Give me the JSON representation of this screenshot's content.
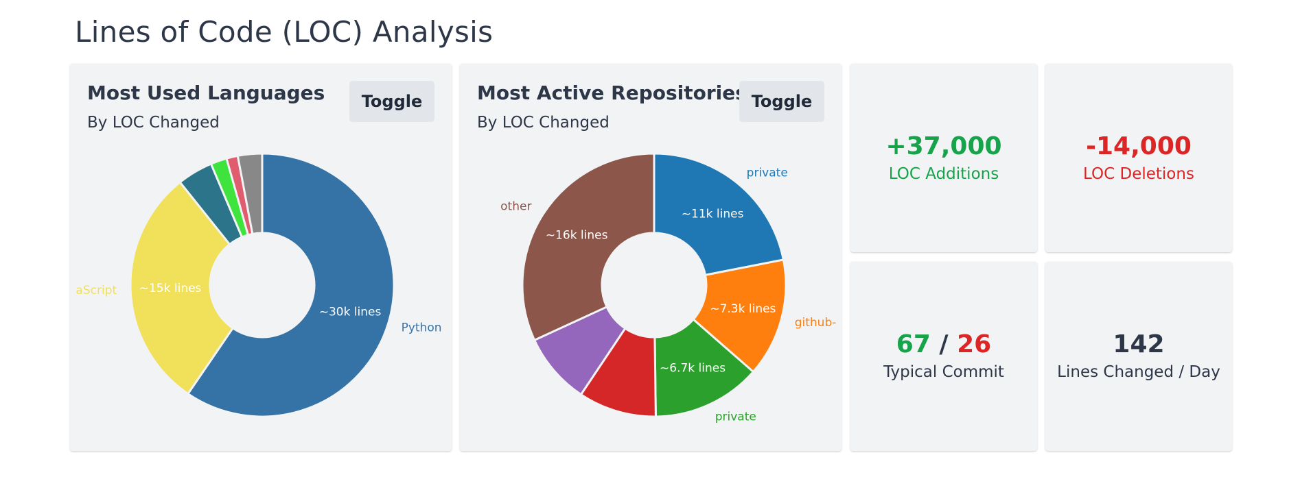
{
  "page": {
    "title": "Lines of Code (LOC) Analysis"
  },
  "languages_card": {
    "title": "Most Used Languages",
    "subtitle": "By LOC Changed",
    "toggle_label": "Toggle"
  },
  "repos_card": {
    "title": "Most Active Repositories",
    "subtitle": "By LOC Changed",
    "toggle_label": "Toggle"
  },
  "stats": {
    "additions": {
      "value": "+37,000",
      "label": "LOC Additions"
    },
    "deletions": {
      "value": "-14,000",
      "label": "LOC Deletions"
    },
    "typical_commit": {
      "added": "67",
      "separator": "/",
      "deleted": "26",
      "label": "Typical Commit"
    },
    "per_day": {
      "value": "142",
      "label": "Lines Changed / Day"
    }
  },
  "chart_data": [
    {
      "type": "donut",
      "slices": [
        {
          "label": "Python",
          "value": 30000,
          "data_label": "~30k lines",
          "color": "#3572a5"
        },
        {
          "label": "aScript",
          "value": 15000,
          "data_label": "~15k lines",
          "color": "#f1e05a"
        },
        {
          "label": "",
          "value": 2200,
          "data_label": "",
          "color": "#2b7489"
        },
        {
          "label": "",
          "value": 1000,
          "data_label": "",
          "color": "#3ee33e"
        },
        {
          "label": "",
          "value": 700,
          "data_label": "",
          "color": "#e05d6f"
        },
        {
          "label": "",
          "value": 1500,
          "data_label": "",
          "color": "#888888"
        }
      ]
    },
    {
      "type": "donut",
      "slices": [
        {
          "label": "private",
          "value": 11000,
          "data_label": "~11k lines",
          "color": "#1f77b4"
        },
        {
          "label": "github-",
          "value": 7300,
          "data_label": "~7.3k lines",
          "color": "#ff7f0e"
        },
        {
          "label": "private",
          "value": 6700,
          "data_label": "~6.7k lines",
          "color": "#2ca02c"
        },
        {
          "label": "",
          "value": 4800,
          "data_label": "",
          "color": "#d62728"
        },
        {
          "label": "",
          "value": 4400,
          "data_label": "",
          "color": "#9467bd"
        },
        {
          "label": "other",
          "value": 16000,
          "data_label": "~16k lines",
          "color": "#8c564b"
        }
      ]
    }
  ]
}
